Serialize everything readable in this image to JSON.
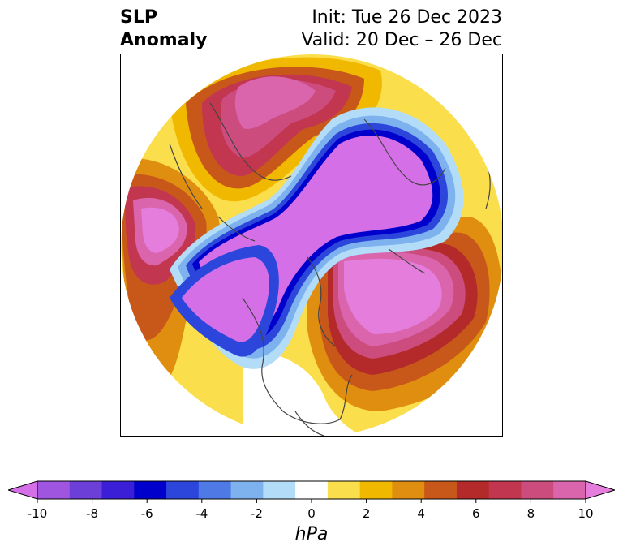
{
  "title": {
    "left_line1": "SLP",
    "left_line2": "Anomaly",
    "right_line1": "Init: Tue 26 Dec 2023",
    "right_line2": "Valid: 20 Dec – 26 Dec"
  },
  "colorbar": {
    "unit": "hPa",
    "tick_labels": [
      "-10",
      "-8",
      "-6",
      "-4",
      "-2",
      "0",
      "2",
      "4",
      "6",
      "8",
      "10"
    ],
    "colors": [
      "#d46fe8",
      "#9f55e0",
      "#6c3fd9",
      "#3a1fd6",
      "#0000cc",
      "#2c46dc",
      "#4f7ae5",
      "#7eb2ef",
      "#b3dcf8",
      "#ffffff",
      "#fbde4c",
      "#f1b800",
      "#e08e10",
      "#c8581a",
      "#b42a2a",
      "#c2374f",
      "#cd4c7e",
      "#da65ad",
      "#e47ddc"
    ]
  },
  "map": {
    "projection": "north-polar-stereographic",
    "anomaly_regions": [
      {
        "name": "arctic-low",
        "sign": "negative"
      },
      {
        "name": "pacific-low",
        "sign": "negative"
      },
      {
        "name": "north-atlantic-high",
        "sign": "positive"
      },
      {
        "name": "siberia-high",
        "sign": "positive"
      },
      {
        "name": "west-pacific-high",
        "sign": "positive"
      }
    ]
  }
}
